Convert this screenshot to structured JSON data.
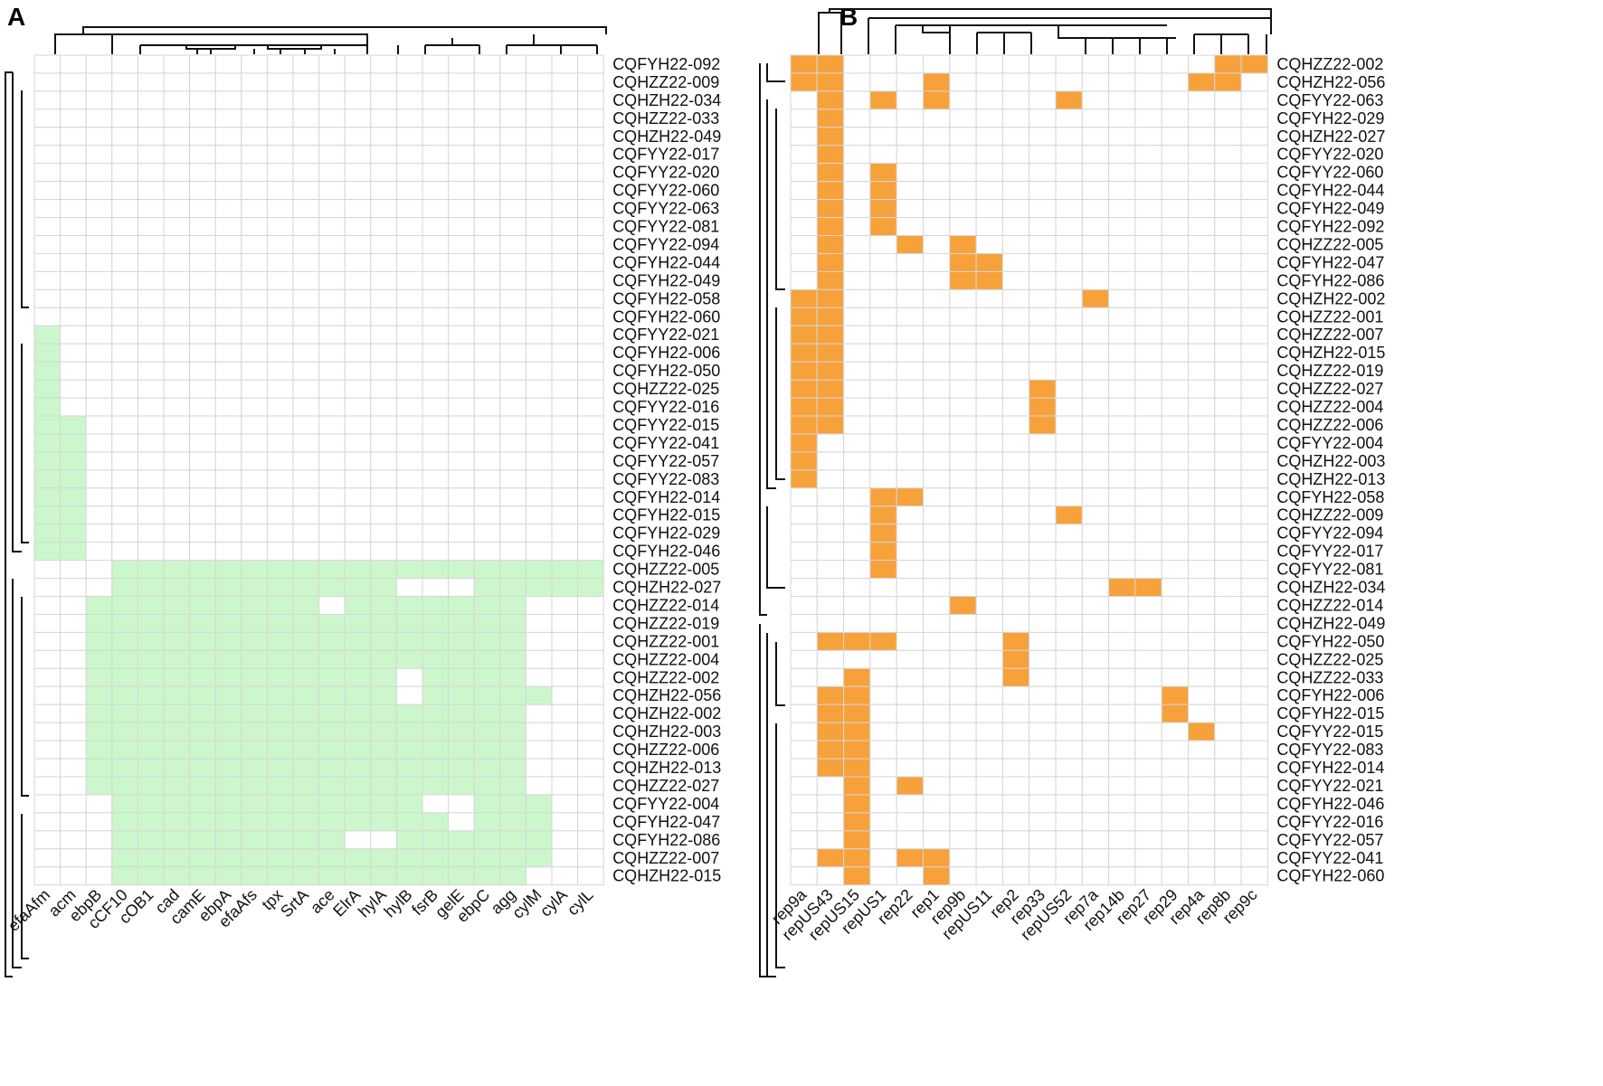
{
  "chart_data": [
    {
      "type": "heatmap",
      "panel": "A",
      "present_color": "#ccf7cc",
      "absent_color": "#ffffff",
      "grid_color": "#d6d6d6",
      "columns": [
        "efaAfm",
        "acm",
        "ebpB",
        "cCF10",
        "cOB1",
        "cad",
        "camE",
        "ebpA",
        "efaAfs",
        "tpx",
        "SrtA",
        "ace",
        "ElrA",
        "hylA",
        "hylB",
        "fsrB",
        "gelE",
        "ebpC",
        "agg",
        "cylM",
        "cylA",
        "cylL"
      ],
      "rows": [
        "CQFYH22-092",
        "CQHZZ22-009",
        "CQHZH22-034",
        "CQHZZ22-033",
        "CQHZH22-049",
        "CQFYY22-017",
        "CQFYY22-020",
        "CQFYY22-060",
        "CQFYY22-063",
        "CQFYY22-081",
        "CQFYY22-094",
        "CQFYH22-044",
        "CQFYH22-049",
        "CQFYH22-058",
        "CQFYH22-060",
        "CQFYY22-021",
        "CQFYH22-006",
        "CQFYH22-050",
        "CQHZZ22-025",
        "CQFYY22-016",
        "CQFYY22-015",
        "CQFYY22-041",
        "CQFYY22-057",
        "CQFYY22-083",
        "CQFYH22-014",
        "CQFYH22-015",
        "CQFYH22-029",
        "CQFYH22-046",
        "CQHZZ22-005",
        "CQHZH22-027",
        "CQHZZ22-014",
        "CQHZZ22-019",
        "CQHZZ22-001",
        "CQHZZ22-004",
        "CQHZZ22-002",
        "CQHZH22-056",
        "CQHZH22-002",
        "CQHZH22-003",
        "CQHZZ22-006",
        "CQHZH22-013",
        "CQHZZ22-027",
        "CQFYY22-004",
        "CQFYH22-047",
        "CQFYH22-086",
        "CQHZZ22-007",
        "CQHZH22-015"
      ],
      "matrix": [
        "0000000000000000000000",
        "0000000000000000000000",
        "0000000000000000000000",
        "0000000000000000000000",
        "0000000000000000000000",
        "0000000000000000000000",
        "0000000000000000000000",
        "0000000000000000000000",
        "0000000000000000000000",
        "0000000000000000000000",
        "0000000000000000000000",
        "0000000000000000000000",
        "0000000000000000000000",
        "0000000000000000000000",
        "0000000000000000000000",
        "1000000000000000000000",
        "1000000000000000000000",
        "1000000000000000000000",
        "1000000000000000000000",
        "1000000000000000000000",
        "1100000000000000000000",
        "1100000000000000000000",
        "1100000000000000000000",
        "1100000000000000000000",
        "1100000000000000000000",
        "1100000000000000000000",
        "1100000000000000000000",
        "1100000000000000000000",
        "0001111111111111111111",
        "0001111111111100011111",
        "0011111111101111111000",
        "0011111111111111111000",
        "0011111111111111111000",
        "0011111111111111111000",
        "0011111111111101111000",
        "0011111111111101111100",
        "0011111111111111111000",
        "0011111111111111111000",
        "0011111111111111111000",
        "0011111111111111111000",
        "0011111111111111111000",
        "0001111111111110011100",
        "0001111111111111011100",
        "0001111111110011111100",
        "0001111111111111111100",
        "0001111111111111111000"
      ]
    },
    {
      "type": "heatmap",
      "panel": "B",
      "present_color": "#f7a13a",
      "absent_color": "#ffffff",
      "grid_color": "#d6d6d6",
      "columns": [
        "rep9a",
        "repUS43",
        "repUS15",
        "repUS1",
        "rep22",
        "rep1",
        "rep9b",
        "repUS11",
        "rep2",
        "rep33",
        "repUS52",
        "rep7a",
        "rep14b",
        "rep27",
        "rep29",
        "rep4a",
        "rep8b",
        "rep9c"
      ],
      "rows": [
        "CQHZZ22-002",
        "CQHZH22-056",
        "CQFYY22-063",
        "CQFYH22-029",
        "CQHZH22-027",
        "CQFYY22-020",
        "CQFYY22-060",
        "CQFYH22-044",
        "CQFYH22-049",
        "CQFYH22-092",
        "CQHZZ22-005",
        "CQFYH22-047",
        "CQFYH22-086",
        "CQHZH22-002",
        "CQHZZ22-001",
        "CQHZZ22-007",
        "CQHZH22-015",
        "CQHZZ22-019",
        "CQHZZ22-027",
        "CQHZZ22-004",
        "CQHZZ22-006",
        "CQFYY22-004",
        "CQHZH22-003",
        "CQHZH22-013",
        "CQFYH22-058",
        "CQHZZ22-009",
        "CQFYY22-094",
        "CQFYY22-017",
        "CQFYY22-081",
        "CQHZH22-034",
        "CQHZZ22-014",
        "CQHZH22-049",
        "CQFYH22-050",
        "CQHZZ22-025",
        "CQHZZ22-033",
        "CQFYH22-006",
        "CQFYH22-015",
        "CQFYY22-015",
        "CQFYY22-083",
        "CQFYH22-014",
        "CQFYY22-021",
        "CQFYH22-046",
        "CQFYY22-016",
        "CQFYY22-057",
        "CQFYY22-041",
        "CQFYH22-060"
      ],
      "matrix": [
        "110000000000000011",
        "110001000000000110",
        "010101000010000000",
        "010000000000000000",
        "010000000000000000",
        "010000000000000000",
        "010100000000000000",
        "010100000000000000",
        "010100000000000000",
        "010100000000000000",
        "010010100000000000",
        "010000110000000000",
        "010000110000000000",
        "110000000001000000",
        "110000000000000000",
        "110000000000000000",
        "110000000000000000",
        "110000000000000000",
        "110000000100000000",
        "110000000100000000",
        "110000000100000000",
        "100000000000000000",
        "100000000000000000",
        "100000000000000000",
        "000110000000000000",
        "000100000010000000",
        "000100000000000000",
        "000100000000000000",
        "000100000000000000",
        "000000000000110000",
        "000000100000000000",
        "000000000000000000",
        "011100001000000000",
        "000000001000000000",
        "001000001000000000",
        "011000000000001000",
        "011000000000001000",
        "011000000000000100",
        "011000000000000000",
        "011000000000000000",
        "001010000000000000",
        "001000000000000000",
        "001000000000000000",
        "001000000000000000",
        "011011000000000000",
        "001001000000000000"
      ]
    }
  ]
}
